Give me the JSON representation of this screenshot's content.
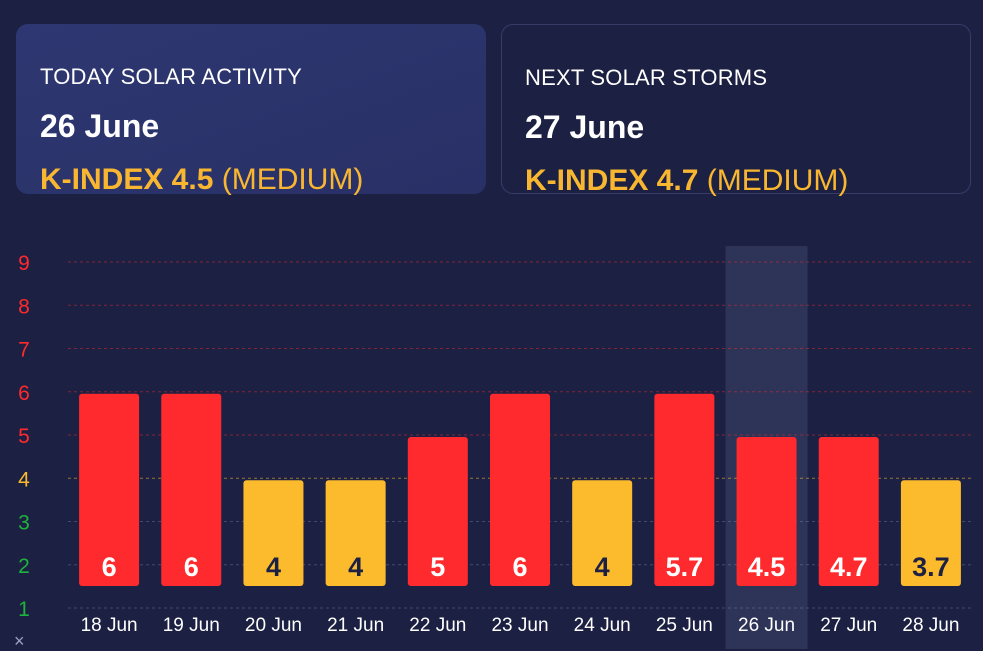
{
  "today": {
    "label": "TODAY SOLAR ACTIVITY",
    "date": "26 June",
    "kindex": "K-INDEX 4.5",
    "level": "(MEDIUM)"
  },
  "next": {
    "label": "NEXT SOLAR STORMS",
    "date": "27 June",
    "kindex": "K-INDEX 4.7",
    "level": "(MEDIUM)"
  },
  "colors": {
    "storm": "#ff2a2d",
    "medium": "#fbbb2d",
    "low": "#1db33c",
    "background": "#1c2042",
    "highlight": "#2e3358"
  },
  "close_icon": "close-icon",
  "close_glyph": "×",
  "chart_data": {
    "type": "bar",
    "categories": [
      "18 Jun",
      "19 Jun",
      "20 Jun",
      "21 Jun",
      "22 Jun",
      "23 Jun",
      "24 Jun",
      "25 Jun",
      "26 Jun",
      "27 Jun",
      "28 Jun"
    ],
    "values": [
      6,
      6,
      4,
      4,
      5,
      6,
      4,
      5.7,
      4.5,
      4.7,
      3.7
    ],
    "bar_heights": [
      6,
      6,
      4,
      4,
      5,
      6,
      4,
      6,
      5,
      5,
      4
    ],
    "labels": [
      "6",
      "6",
      "4",
      "4",
      "5",
      "6",
      "4",
      "5.7",
      "4.5",
      "4.7",
      "3.7"
    ],
    "bar_levels": [
      "storm",
      "storm",
      "medium",
      "medium",
      "storm",
      "storm",
      "medium",
      "storm",
      "storm",
      "storm",
      "medium"
    ],
    "label_levels": [
      "storm",
      "storm",
      "medium",
      "medium",
      "storm",
      "storm",
      "medium",
      "storm",
      "storm",
      "storm",
      "medium"
    ],
    "highlighted_category": "26 Jun",
    "y_ticks": [
      "1",
      "2",
      "3",
      "4",
      "5",
      "6",
      "7",
      "8",
      "9"
    ],
    "y_tick_levels": [
      "low",
      "low",
      "low",
      "medium",
      "storm",
      "storm",
      "storm",
      "storm",
      "storm"
    ],
    "ylim": [
      1,
      9
    ],
    "grid": true,
    "title": "",
    "xlabel": "",
    "ylabel": ""
  }
}
